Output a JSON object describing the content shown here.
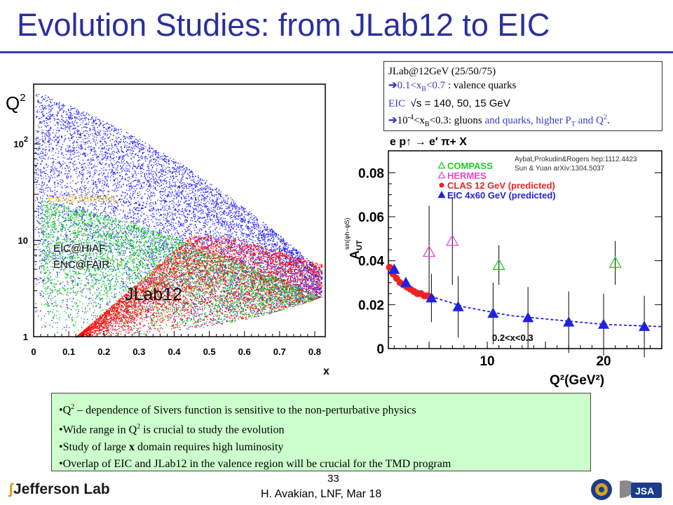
{
  "title": "Evolution Studies: from  JLab12 to EIC",
  "left_plot": {
    "y_label": "Q",
    "y_label_sup": "2",
    "y_ticks": [
      {
        "label": "1",
        "sup": ""
      },
      {
        "label": "10",
        "sup": ""
      },
      {
        "label": "10",
        "sup": "2"
      }
    ],
    "x_label": "x",
    "x_ticks": [
      "0",
      "0.1",
      "0.2",
      "0.3",
      "0.4",
      "0.5",
      "0.6",
      "0.7",
      "0.8"
    ],
    "region_labels": {
      "eic": "EIC@Jlab/BNL",
      "hiaf_line1": "EIC@HIAF",
      "hiaf_line2": "ENC@FAIR",
      "jlab": "JLab12"
    },
    "colors": {
      "eic": "#1010ff",
      "hiaf": "#11cc22",
      "jlab": "#ff1010",
      "eic_label": "#e8d040"
    }
  },
  "info_box": {
    "line1": "JLab@12GeV (25/50/75)",
    "line2_range": "0.1<x",
    "line2_sub": "B",
    "line2_range2": "<0.7",
    "line2_text": " : valence quarks",
    "line3_a": "EIC",
    "line3_b": "√s = 140, 50, 15 GeV",
    "line4_a": "10",
    "line4_sup": "-4",
    "line4_b": "<x",
    "line4_sub": "B",
    "line4_c": "<0.3",
    "line4_d": ": gluons ",
    "line4_e": "and quarks, higher P",
    "line4_sub2": "T",
    "line4_f": " and Q",
    "line4_sup2": "2",
    "line4_g": "."
  },
  "right_plot": {
    "process": "e p↑ → e′ π+ X",
    "refs_line1": "Aybat,Prokudin&Rogers hep:1112.4423",
    "refs_line2": "Sun & Yuan arXiv:1304.5037",
    "y_label": "A",
    "y_label_sub": "UT",
    "y_label_sup": "sin(φh−φS)",
    "x_label": "Q²(GeV²)",
    "cut_label": "0.2<x<0.3",
    "legend": [
      {
        "label": "COMPASS",
        "color": "#22cc22",
        "marker": "open-triangle"
      },
      {
        "label": "HERMES",
        "color": "#ee44cc",
        "marker": "open-triangle"
      },
      {
        "label": "CLAS 12 GeV (predicted)",
        "color": "#ee2222",
        "marker": "circle"
      },
      {
        "label": "EIC 4x60 GeV (predicted)",
        "color": "#2222dd",
        "marker": "triangle"
      }
    ],
    "y_ticks": [
      "0",
      "0.02",
      "0.04",
      "0.06",
      "0.08"
    ],
    "x_ticks": [
      "10",
      "20"
    ]
  },
  "chart_data": {
    "type": "scatter",
    "x_label": "Q²(GeV²)",
    "y_label": "A_UT^{sin(φh−φS)}",
    "xlim": [
      1.5,
      25
    ],
    "ylim": [
      0,
      0.09
    ],
    "series": [
      {
        "name": "COMPASS",
        "x": [
          11,
          21
        ],
        "y": [
          0.038,
          0.039
        ],
        "err": [
          0.009,
          0.01
        ]
      },
      {
        "name": "HERMES",
        "x": [
          5,
          7
        ],
        "y": [
          0.044,
          0.049
        ],
        "err": [
          0.021,
          0.02
        ]
      },
      {
        "name": "CLAS 12 GeV (predicted)",
        "x": [
          1.6,
          1.9,
          2.2,
          2.5,
          2.8,
          3.1,
          3.4,
          3.7,
          4.0,
          4.3,
          4.6,
          4.9,
          5.2
        ],
        "y": [
          0.037,
          0.034,
          0.032,
          0.03,
          0.029,
          0.028,
          0.027,
          0.026,
          0.025,
          0.025,
          0.024,
          0.024,
          0.023
        ],
        "err": [
          0.001,
          0.001,
          0.001,
          0.001,
          0.001,
          0.001,
          0.001,
          0.001,
          0.001,
          0.001,
          0.001,
          0.001,
          0.001
        ]
      },
      {
        "name": "EIC 4x60 GeV (predicted)",
        "x": [
          2.0,
          3.0,
          5.2,
          7.5,
          10.5,
          13.5,
          17,
          20,
          23.5
        ],
        "y": [
          0.036,
          0.03,
          0.023,
          0.019,
          0.016,
          0.014,
          0.012,
          0.011,
          0.01
        ],
        "err": [
          0.001,
          0.002,
          0.011,
          0.014,
          0.014,
          0.014,
          0.014,
          0.014,
          0.014
        ]
      }
    ],
    "curve": {
      "x": [
        1.5,
        3,
        5,
        8,
        12,
        16,
        20,
        25
      ],
      "y": [
        0.035,
        0.029,
        0.024,
        0.019,
        0.015,
        0.013,
        0.011,
        0.01
      ]
    }
  },
  "bullets": [
    {
      "pre": "Q",
      "sup": "2",
      "post": " – dependence of Sivers function is  sensitive to the non-perturbative physics"
    },
    {
      "pre": "Wide range in Q",
      "sup": "2",
      "post": " is crucial to study the evolution"
    },
    {
      "pre": "Study of large ",
      "bold": "x",
      "post": " domain  requires high luminosity"
    },
    {
      "pre": "Overlap of EIC and JLab12 in the valence region will be crucial for the TMD program"
    }
  ],
  "footer": {
    "logo_text": "Jefferson Lab",
    "page_number": "33",
    "author": "H. Avakian,  LNF,  Mar 18"
  }
}
